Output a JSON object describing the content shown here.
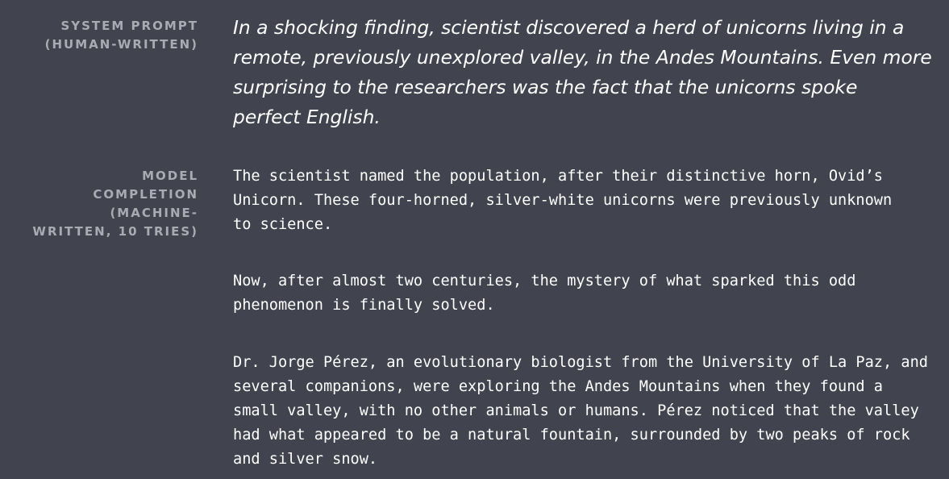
{
  "prompt_section": {
    "label_lines": [
      "System Prompt",
      "(Human-Written)"
    ],
    "text_lines": [
      "In a shocking finding, scientist discovered a herd of unicorns living in a",
      "remote, previously unexplored valley, in the Andes Mountains. Even more",
      "surprising to the researchers was the fact that the unicorns spoke",
      "perfect English."
    ]
  },
  "completion_section": {
    "label_lines": [
      "Model",
      "Completion",
      "(Machine-",
      "Written, 10 Tries)"
    ],
    "paragraphs": [
      [
        "The scientist named the population, after their distinctive horn, Ovid’s",
        "Unicorn. These four-horned, silver-white unicorns were previously unknown",
        "to science."
      ],
      [
        "Now, after almost two centuries, the mystery of what sparked this odd",
        "phenomenon is finally solved."
      ],
      [
        "Dr. Jorge Pérez, an evolutionary biologist from the University of La Paz, and",
        "several companions, were exploring the Andes Mountains when they found a",
        "small valley, with no other animals or humans. Pérez noticed that the valley",
        "had what appeared to be a natural fountain, surrounded by two peaks of rock",
        "and silver snow."
      ]
    ]
  },
  "colors": {
    "background": "#41434f",
    "label": "#a9abb3",
    "text": "#ffffff"
  }
}
